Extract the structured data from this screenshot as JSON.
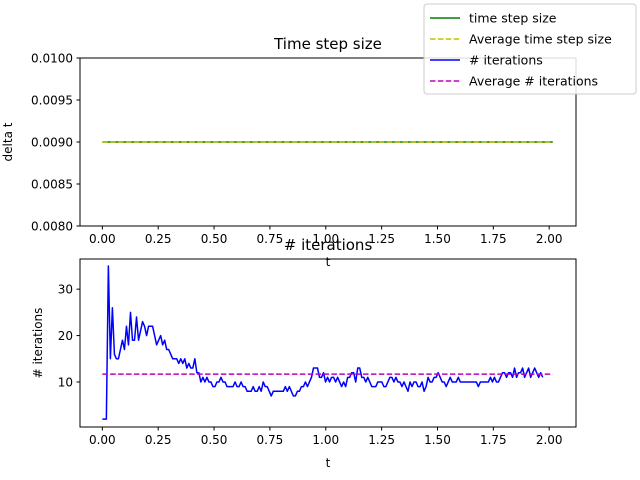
{
  "legend": {
    "entries": [
      {
        "label": "time step size",
        "color": "#008000",
        "dash": "solid"
      },
      {
        "label": "Average time step size",
        "color": "#bfbf00",
        "dash": "dashed"
      },
      {
        "label": "# iterations",
        "color": "#0000ff",
        "dash": "solid"
      },
      {
        "label": "Average # iterations",
        "color": "#bf00bf",
        "dash": "dashed"
      }
    ]
  },
  "chart_data": [
    {
      "type": "line",
      "title": "Time step size",
      "xlabel": "t",
      "ylabel": "delta t",
      "xlim": [
        -0.1,
        2.12
      ],
      "ylim": [
        0.008,
        0.01
      ],
      "xticks": [
        0.0,
        0.25,
        0.5,
        0.75,
        1.0,
        1.25,
        1.5,
        1.75,
        2.0
      ],
      "xtick_labels": [
        "0.00",
        "0.25",
        "0.50",
        "0.75",
        "1.00",
        "1.25",
        "1.50",
        "1.75",
        "2.00"
      ],
      "yticks": [
        0.008,
        0.0085,
        0.009,
        0.0095,
        0.01
      ],
      "ytick_labels": [
        "0.0080",
        "0.0085",
        "0.0090",
        "0.0095",
        "0.0100"
      ],
      "grid": false,
      "series": [
        {
          "name": "time step size",
          "color": "#008000",
          "dash": "solid",
          "x": [
            0.0,
            2.016
          ],
          "y": [
            0.009,
            0.009
          ]
        },
        {
          "name": "Average time step size",
          "color": "#bfbf00",
          "dash": "dashed",
          "x": [
            0.0,
            2.016
          ],
          "y": [
            0.009,
            0.009
          ]
        }
      ]
    },
    {
      "type": "line",
      "title": "# iterations",
      "xlabel": "t",
      "ylabel": "# iterations",
      "xlim": [
        -0.1,
        2.12
      ],
      "ylim": [
        0.3,
        36.5
      ],
      "xticks": [
        0.0,
        0.25,
        0.5,
        0.75,
        1.0,
        1.25,
        1.5,
        1.75,
        2.0
      ],
      "xtick_labels": [
        "0.00",
        "0.25",
        "0.50",
        "0.75",
        "1.00",
        "1.25",
        "1.50",
        "1.75",
        "2.00"
      ],
      "yticks": [
        10,
        20,
        30
      ],
      "ytick_labels": [
        "10",
        "20",
        "30"
      ],
      "grid": false,
      "series": [
        {
          "name": "# iterations",
          "color": "#0000ff",
          "dash": "solid",
          "x_start": 0.0,
          "x_step": 0.009,
          "values": [
            2,
            2,
            2,
            35,
            15,
            26,
            16,
            15,
            15,
            17,
            19,
            17,
            22,
            18,
            25,
            19,
            19,
            24,
            19,
            21,
            23,
            22,
            20,
            22,
            22,
            22,
            20,
            18,
            19,
            20,
            18,
            19,
            17,
            17,
            16,
            15,
            15,
            15,
            14,
            15,
            14,
            15,
            13,
            14,
            13,
            13,
            15,
            12,
            12,
            10,
            11,
            10,
            11,
            10,
            10,
            9,
            9,
            10,
            10,
            11,
            10,
            10,
            9,
            9,
            9,
            9,
            10,
            9,
            9,
            10,
            9,
            9,
            8,
            8,
            8,
            9,
            8,
            8,
            9,
            8,
            10,
            9,
            9,
            8,
            7,
            8,
            8,
            8,
            8,
            8,
            8,
            9,
            8,
            9,
            8,
            7,
            7,
            8,
            8,
            9,
            9,
            10,
            9,
            10,
            11,
            13,
            13,
            13,
            11,
            11,
            12,
            10,
            11,
            10,
            11,
            11,
            10,
            11,
            10,
            9,
            10,
            9,
            11,
            11,
            12,
            12,
            10,
            13,
            13,
            11,
            11,
            10,
            11,
            10,
            9,
            9,
            9,
            10,
            10,
            10,
            9,
            9,
            10,
            11,
            11,
            10,
            11,
            10,
            10,
            9,
            10,
            9,
            8,
            10,
            9,
            10,
            10,
            9,
            9,
            10,
            8,
            9,
            11,
            10,
            10,
            11,
            11,
            12,
            11,
            10,
            10,
            9,
            10,
            11,
            10,
            10,
            10,
            11,
            10,
            10,
            10,
            10,
            10,
            10,
            10,
            10,
            10,
            9,
            10,
            10,
            10,
            10,
            10,
            11,
            10,
            11,
            10,
            10,
            11,
            12,
            12,
            11,
            12,
            12,
            11,
            13,
            11,
            12,
            12,
            13,
            11,
            12,
            13,
            11,
            12,
            13,
            12,
            11,
            12,
            11
          ]
        },
        {
          "name": "Average # iterations",
          "color": "#bf00bf",
          "dash": "dashed",
          "x": [
            0.0,
            2.016
          ],
          "y": [
            11.7,
            11.7
          ]
        }
      ]
    }
  ]
}
